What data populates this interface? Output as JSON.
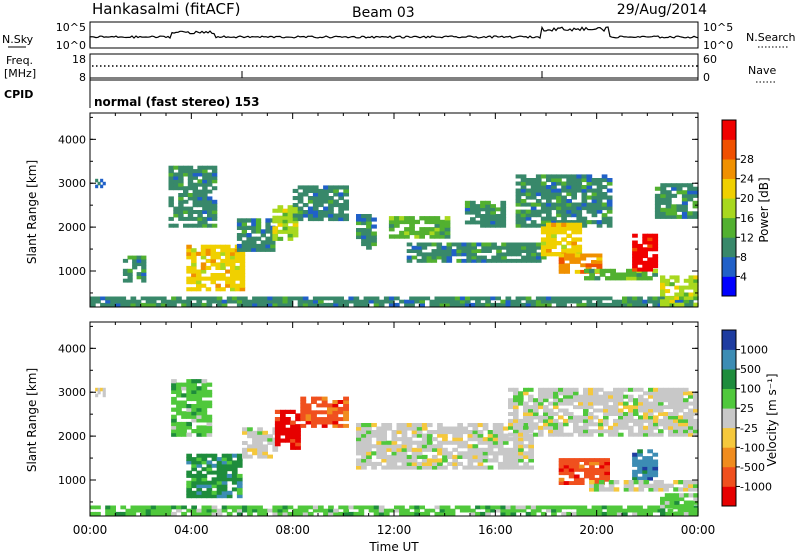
{
  "header": {
    "station": "Hankasalmi (fitACF)",
    "beam": "Beam 03",
    "date": "29/Aug/2014"
  },
  "top_panels": {
    "nsky": {
      "label": "N.Sky",
      "ticks": [
        "10^5",
        "10^0"
      ]
    },
    "nsearch": {
      "label": "N.Search",
      "ticks": [
        "10^5",
        "10^0"
      ]
    },
    "freq": {
      "label_line1": "Freq.",
      "label_line2": "[MHz]",
      "ticks": [
        "18",
        "8"
      ]
    },
    "nave": {
      "label": "Nave",
      "ticks": [
        "60",
        "0"
      ]
    },
    "cpid": {
      "label": "CPID",
      "mode_text": "normal (fast stereo) 153"
    }
  },
  "chart_data": [
    {
      "type": "heatmap",
      "name": "power",
      "xlabel": "",
      "ylabel": "Slant Range [km]",
      "xlim": [
        0,
        24
      ],
      "ylim": [
        180,
        4600
      ],
      "yticks": [
        "1000",
        "2000",
        "3000",
        "4000"
      ],
      "colorbar_label": "Power [dB]",
      "colorbar_ticks": [
        "4",
        "8",
        "12",
        "16",
        "20",
        "24",
        "28"
      ],
      "colors": [
        "#0000ff",
        "#2060c8",
        "#38886a",
        "#52b030",
        "#a8d81e",
        "#f0d000",
        "#f09000",
        "#f05000",
        "#f00000"
      ],
      "bands": [
        {
          "t0": 0.0,
          "t1": 24.0,
          "r0": 200,
          "r1": 420,
          "level": 2
        },
        {
          "t0": 0.2,
          "t1": 0.6,
          "r0": 2900,
          "r1": 3100,
          "level": 1
        },
        {
          "t0": 1.3,
          "t1": 2.2,
          "r0": 750,
          "r1": 1350,
          "level": 2
        },
        {
          "t0": 3.1,
          "t1": 5.0,
          "r0": 2000,
          "r1": 3400,
          "level": 2
        },
        {
          "t0": 3.8,
          "t1": 6.1,
          "r0": 550,
          "r1": 1600,
          "level": 5
        },
        {
          "t0": 5.8,
          "t1": 7.3,
          "r0": 1450,
          "r1": 2200,
          "level": 2
        },
        {
          "t0": 7.2,
          "t1": 8.2,
          "r0": 1700,
          "r1": 2500,
          "level": 4
        },
        {
          "t0": 8.0,
          "t1": 10.2,
          "r0": 2150,
          "r1": 2950,
          "level": 2
        },
        {
          "t0": 10.5,
          "t1": 11.3,
          "r0": 1500,
          "r1": 2300,
          "level": 2
        },
        {
          "t0": 11.8,
          "t1": 14.2,
          "r0": 1750,
          "r1": 2250,
          "level": 3
        },
        {
          "t0": 12.5,
          "t1": 18.0,
          "r0": 1200,
          "r1": 1650,
          "level": 2
        },
        {
          "t0": 14.8,
          "t1": 16.4,
          "r0": 2000,
          "r1": 2600,
          "level": 2
        },
        {
          "t0": 16.8,
          "t1": 20.6,
          "r0": 2000,
          "r1": 3200,
          "level": 2
        },
        {
          "t0": 17.8,
          "t1": 19.4,
          "r0": 1350,
          "r1": 2100,
          "level": 5
        },
        {
          "t0": 18.5,
          "t1": 20.2,
          "r0": 950,
          "r1": 1400,
          "level": 6
        },
        {
          "t0": 19.5,
          "t1": 22.4,
          "r0": 800,
          "r1": 1050,
          "level": 3
        },
        {
          "t0": 21.4,
          "t1": 22.4,
          "r0": 1000,
          "r1": 1850,
          "level": 8
        },
        {
          "t0": 22.3,
          "t1": 24.0,
          "r0": 2200,
          "r1": 3000,
          "level": 2
        },
        {
          "t0": 22.5,
          "t1": 24.0,
          "r0": 200,
          "r1": 900,
          "level": 4
        }
      ]
    },
    {
      "type": "heatmap",
      "name": "velocity",
      "xlabel": "Time UT",
      "ylabel": "Slant Range [km]",
      "xlim": [
        0,
        24
      ],
      "ylim": [
        180,
        4600
      ],
      "xticks": [
        "00:00",
        "04:00",
        "08:00",
        "12:00",
        "16:00",
        "20:00",
        "00:00"
      ],
      "yticks": [
        "1000",
        "2000",
        "3000",
        "4000"
      ],
      "colorbar_label": "Velocity [m s⁻¹]",
      "colorbar_ticks": [
        "1000",
        "500",
        "100",
        "25",
        "-25",
        "-100",
        "-500",
        "-1000"
      ],
      "colors": [
        "#1e3ca0",
        "#3c8cb4",
        "#1e8c3c",
        "#50c83c",
        "#c8c8c8",
        "#f5c83c",
        "#f08c1e",
        "#f0501e",
        "#e60000"
      ],
      "bands": [
        {
          "t0": 0.0,
          "t1": 24.0,
          "r0": 200,
          "r1": 420,
          "level": 3
        },
        {
          "t0": 0.2,
          "t1": 0.6,
          "r0": 2900,
          "r1": 3100,
          "level": 4
        },
        {
          "t0": 3.2,
          "t1": 4.8,
          "r0": 2000,
          "r1": 3300,
          "level": 3
        },
        {
          "t0": 3.8,
          "t1": 6.0,
          "r0": 600,
          "r1": 1600,
          "level": 2
        },
        {
          "t0": 6.0,
          "t1": 7.4,
          "r0": 1500,
          "r1": 2200,
          "level": 4
        },
        {
          "t0": 7.3,
          "t1": 8.3,
          "r0": 1700,
          "r1": 2600,
          "level": 8
        },
        {
          "t0": 8.3,
          "t1": 10.2,
          "r0": 2200,
          "r1": 2900,
          "level": 7
        },
        {
          "t0": 10.5,
          "t1": 17.5,
          "r0": 1250,
          "r1": 2300,
          "level": 4
        },
        {
          "t0": 16.5,
          "t1": 24.0,
          "r0": 2000,
          "r1": 3100,
          "level": 4
        },
        {
          "t0": 18.5,
          "t1": 20.5,
          "r0": 900,
          "r1": 1500,
          "level": 7
        },
        {
          "t0": 21.4,
          "t1": 22.4,
          "r0": 1000,
          "r1": 1700,
          "level": 1
        },
        {
          "t0": 19.5,
          "t1": 24.0,
          "r0": 750,
          "r1": 1000,
          "level": 4
        },
        {
          "t0": 22.5,
          "t1": 24.0,
          "r0": 200,
          "r1": 700,
          "level": 3
        }
      ]
    }
  ]
}
